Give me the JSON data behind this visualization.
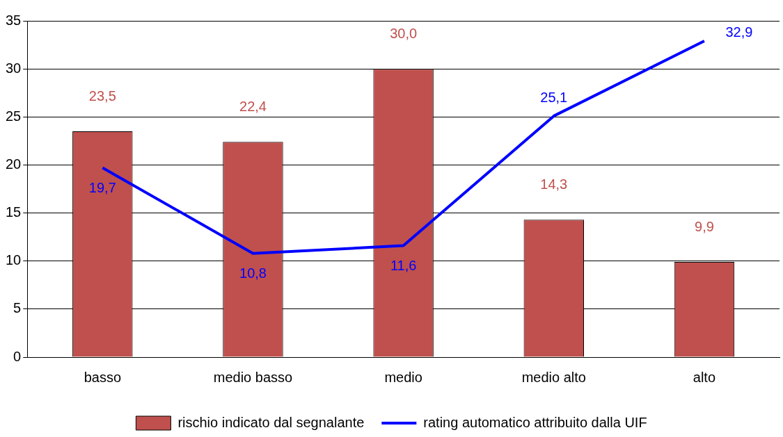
{
  "chart_data": {
    "type": "bar",
    "categories": [
      "basso",
      "medio basso",
      "medio",
      "medio alto",
      "alto"
    ],
    "series": [
      {
        "name": "rischio indicato dal segnalante",
        "color": "#c0504d",
        "values": [
          23.5,
          22.4,
          30.0,
          14.3,
          9.9
        ],
        "value_labels": [
          "23,5",
          "22,4",
          "30,0",
          "14,3",
          "9,9"
        ]
      },
      {
        "name": "rating automatico attribuito dalla UIF",
        "type": "line",
        "color": "#0000ff",
        "values": [
          19.7,
          10.8,
          11.6,
          25.1,
          32.9
        ],
        "value_labels": [
          "19,7",
          "10,8",
          "11,6",
          "25,1",
          "32,9"
        ]
      }
    ],
    "ylim": [
      0,
      35
    ],
    "yticks": [
      0,
      5,
      10,
      15,
      20,
      25,
      30,
      35
    ],
    "grid": "y",
    "legend": "bottom",
    "marker": "none",
    "line_style": "solid"
  }
}
